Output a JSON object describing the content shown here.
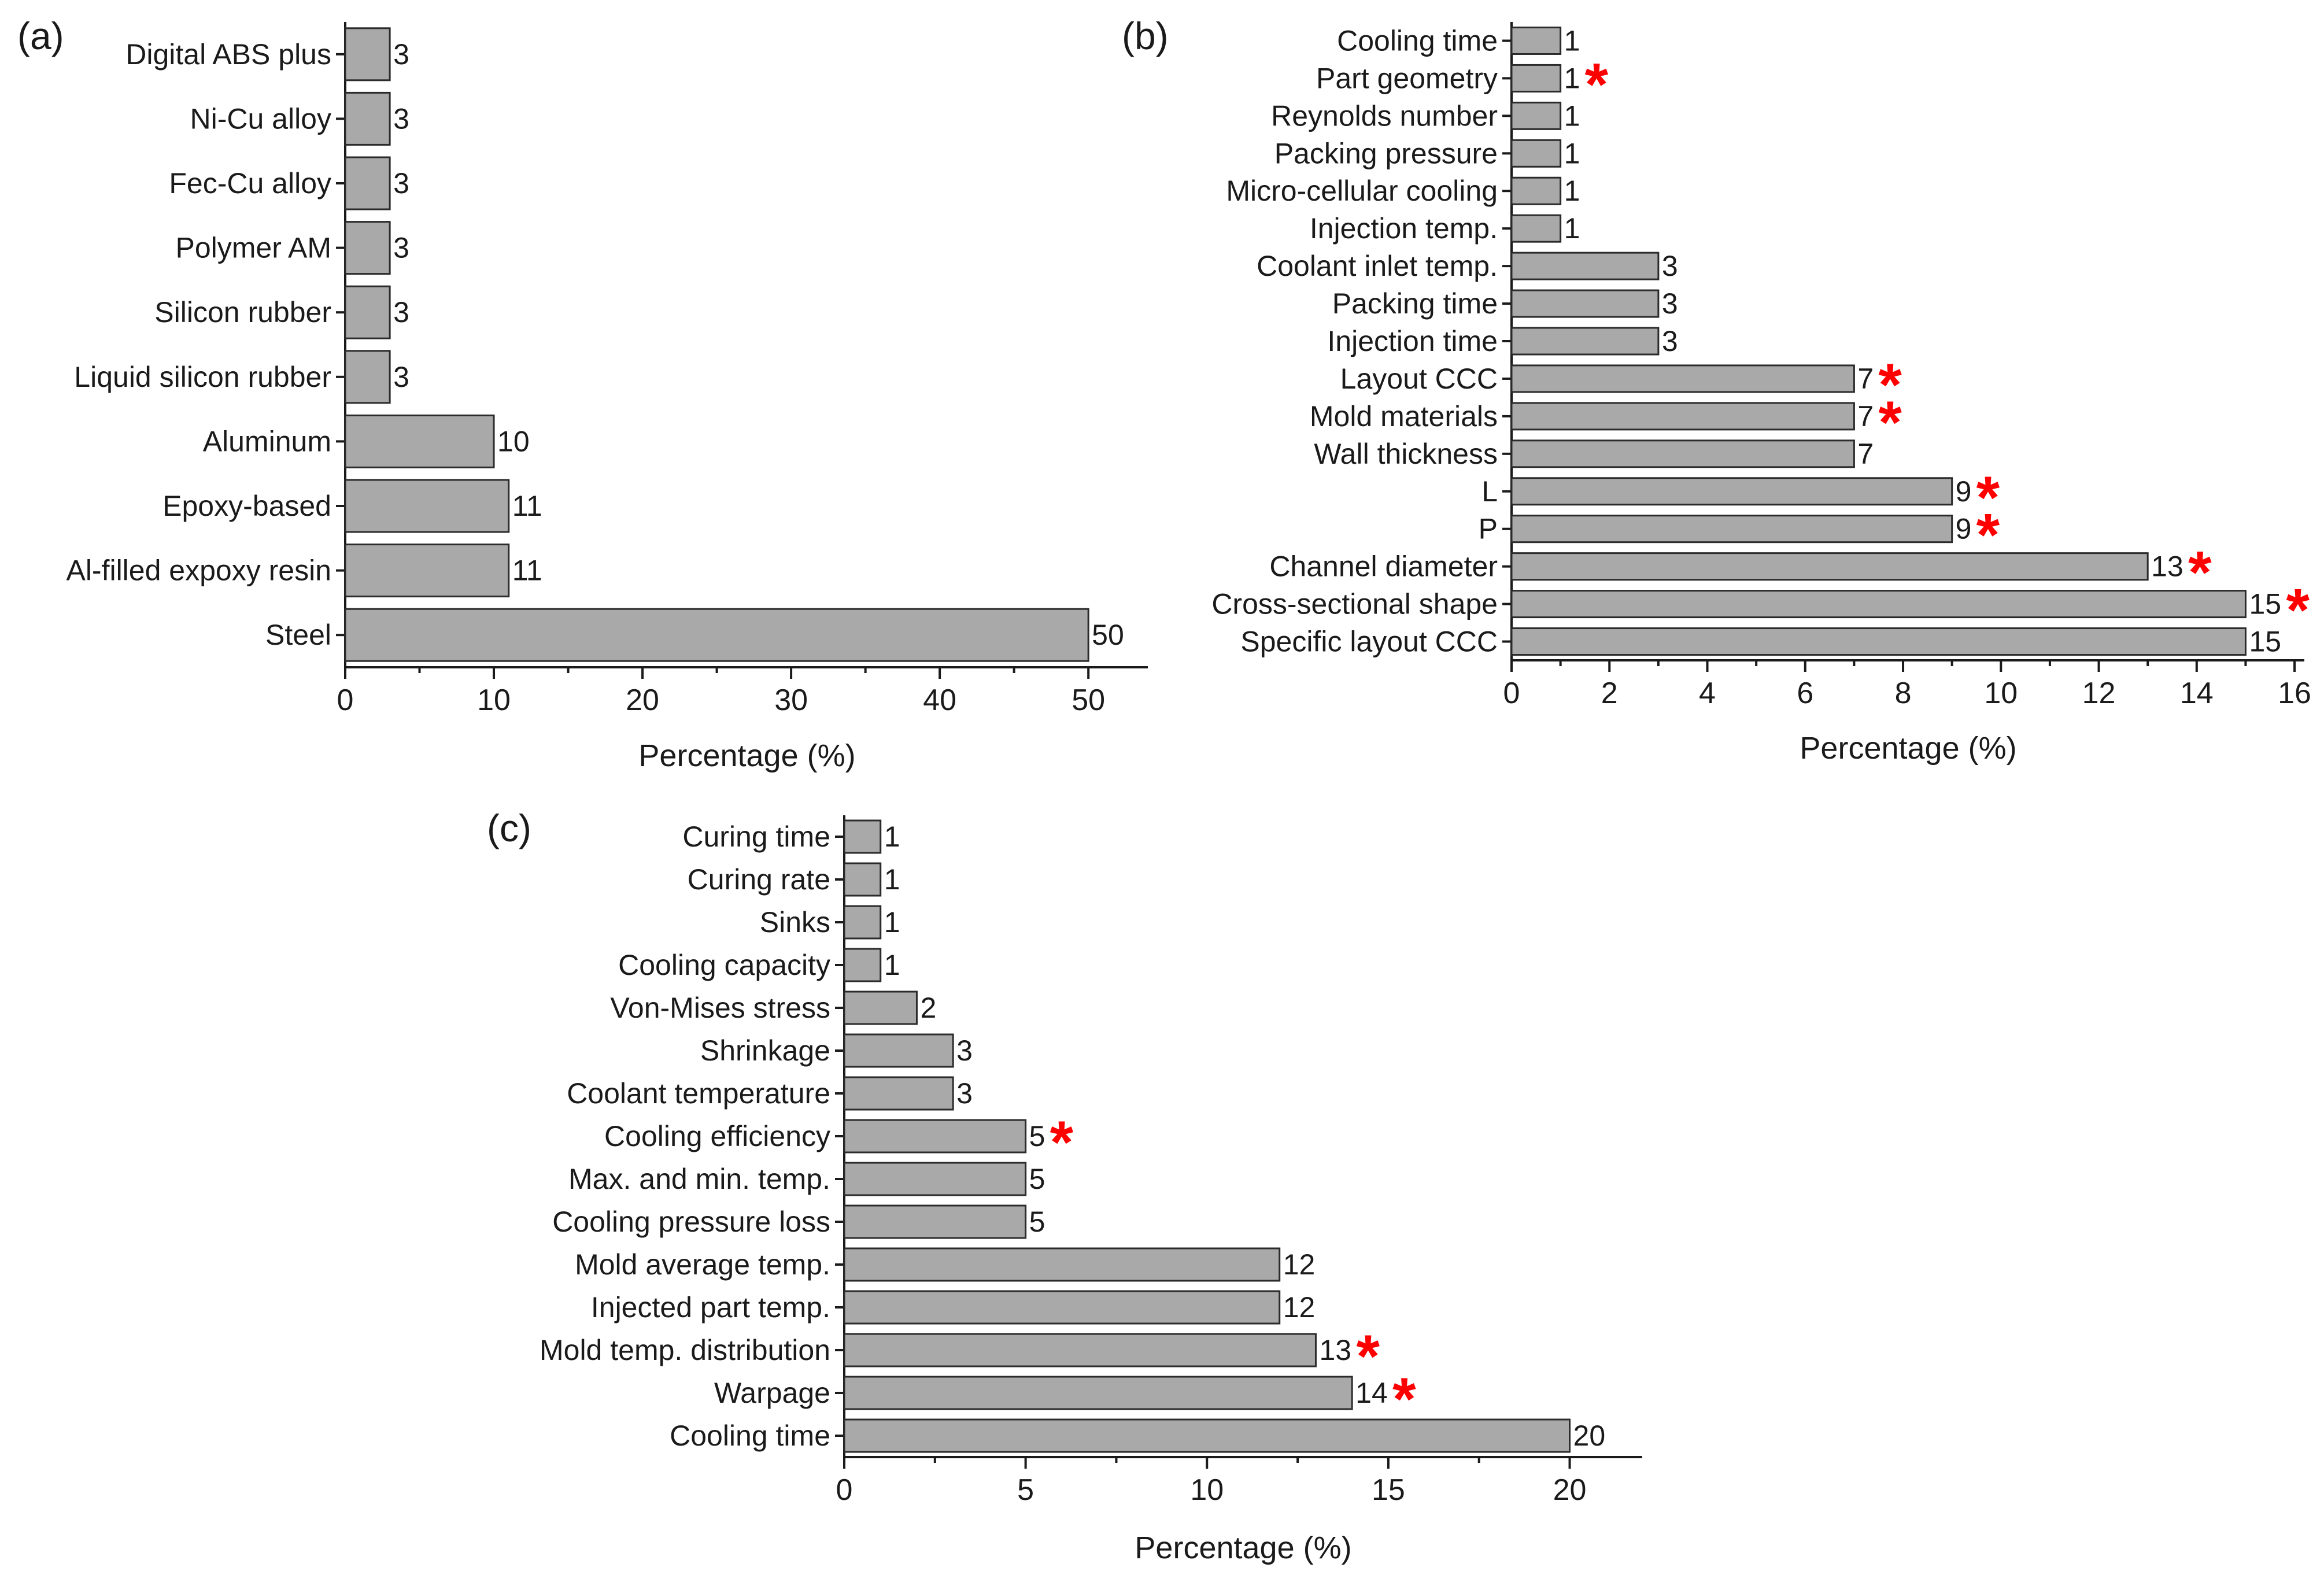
{
  "colors": {
    "bar": "#a9a9a9",
    "bar_edge": "#2b2b2b",
    "star": "#ff0000",
    "text": "#1a1a1a"
  },
  "chart_data": [
    {
      "id": "a",
      "type": "bar",
      "orientation": "horizontal",
      "panel_label": "(a)",
      "xlabel": "Percentage (%)",
      "xlim": [
        0,
        54
      ],
      "xticks": [
        0,
        10,
        20,
        30,
        40,
        50
      ],
      "categories": [
        "Digital ABS plus",
        "Ni-Cu alloy",
        "Fec-Cu alloy",
        "Polymer AM",
        "Silicon rubber",
        "Liquid silicon rubber",
        "Aluminum",
        "Epoxy-based",
        "Al-filled expoxy resin",
        "Steel"
      ],
      "values": [
        3,
        3,
        3,
        3,
        3,
        3,
        10,
        11,
        11,
        50
      ],
      "starred": [
        false,
        false,
        false,
        false,
        false,
        false,
        false,
        false,
        false,
        false
      ]
    },
    {
      "id": "b",
      "type": "bar",
      "orientation": "horizontal",
      "panel_label": "(b)",
      "xlabel": "Percentage (%)",
      "xlim": [
        0,
        16.2
      ],
      "xticks": [
        0,
        2,
        4,
        6,
        8,
        10,
        12,
        14,
        16
      ],
      "categories": [
        "Cooling time",
        "Part geometry",
        "Reynolds number",
        "Packing pressure",
        "Micro-cellular cooling",
        "Injection temp.",
        "Coolant inlet temp.",
        "Packing time",
        "Injection time",
        "Layout CCC",
        "Mold materials",
        "Wall thickness",
        "L",
        "P",
        "Channel diameter",
        "Cross-sectional shape",
        "Specific layout CCC"
      ],
      "values": [
        1,
        1,
        1,
        1,
        1,
        1,
        3,
        3,
        3,
        7,
        7,
        7,
        9,
        9,
        13,
        15,
        15
      ],
      "starred": [
        false,
        true,
        false,
        false,
        false,
        false,
        false,
        false,
        false,
        true,
        true,
        false,
        true,
        true,
        true,
        true,
        false
      ]
    },
    {
      "id": "c",
      "type": "bar",
      "orientation": "horizontal",
      "panel_label": "(c)",
      "xlabel": "Percentage (%)",
      "xlim": [
        0,
        22
      ],
      "xticks": [
        0,
        5,
        10,
        15,
        20
      ],
      "categories": [
        "Curing time",
        "Curing rate",
        "Sinks",
        "Cooling capacity",
        "Von-Mises stress",
        "Shrinkage",
        "Coolant temperature",
        "Cooling efficiency",
        "Max. and min. temp.",
        "Cooling pressure loss",
        "Mold average temp.",
        "Injected part temp.",
        "Mold temp. distribution",
        "Warpage",
        "Cooling time"
      ],
      "values": [
        1,
        1,
        1,
        1,
        2,
        3,
        3,
        5,
        5,
        5,
        12,
        12,
        13,
        14,
        20
      ],
      "starred": [
        false,
        false,
        false,
        false,
        false,
        false,
        false,
        true,
        false,
        false,
        false,
        false,
        true,
        true,
        false
      ]
    }
  ]
}
